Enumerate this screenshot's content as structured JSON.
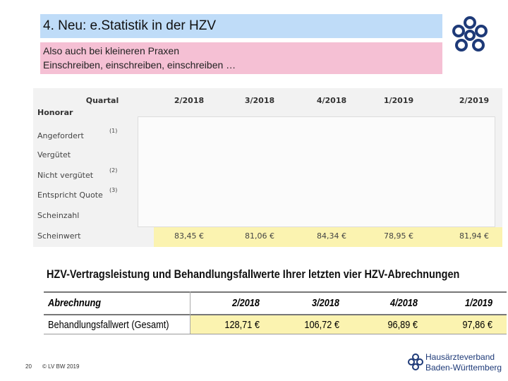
{
  "header": {
    "title": "4. Neu: e.Statistik in der HZV",
    "subtitle_lines": [
      "Also auch bei kleineren Praxen",
      "Einschreiben, einschreiben, einschreiben …"
    ]
  },
  "table1": {
    "columns": [
      "Quartal",
      "2/2018",
      "3/2018",
      "4/2018",
      "1/2019",
      "2/2019"
    ],
    "rows": [
      {
        "label": "Honorar"
      },
      {
        "label": "Angefordert",
        "note": "(1)"
      },
      {
        "label": "Vergütet"
      },
      {
        "label": "Nicht vergütet",
        "note": "(2)"
      },
      {
        "label": "Entspricht Quote",
        "note": "(3)"
      },
      {
        "label": "Scheinzahl"
      },
      {
        "label": "Scheinwert",
        "values": [
          "83,45 €",
          "81,06 €",
          "84,34 €",
          "78,95 €",
          "81,94 €"
        ]
      }
    ]
  },
  "table2": {
    "title": "HZV-Vertragsleistung und Behandlungsfallwerte Ihrer letzten vier HZV-Abrechnungen",
    "columns": [
      "Abrechnung",
      "2/2018",
      "3/2018",
      "4/2018",
      "1/2019"
    ],
    "rows": [
      [
        "Behandlungsfallwert (Gesamt)",
        "128,71 €",
        "106,72 €",
        "96,89 €",
        "97,86 €"
      ]
    ]
  },
  "footer": {
    "page": "20",
    "copyright": "© LV BW 2019",
    "logo_line1": "Hausärzteverband",
    "logo_line2": "Baden-Württemberg"
  }
}
